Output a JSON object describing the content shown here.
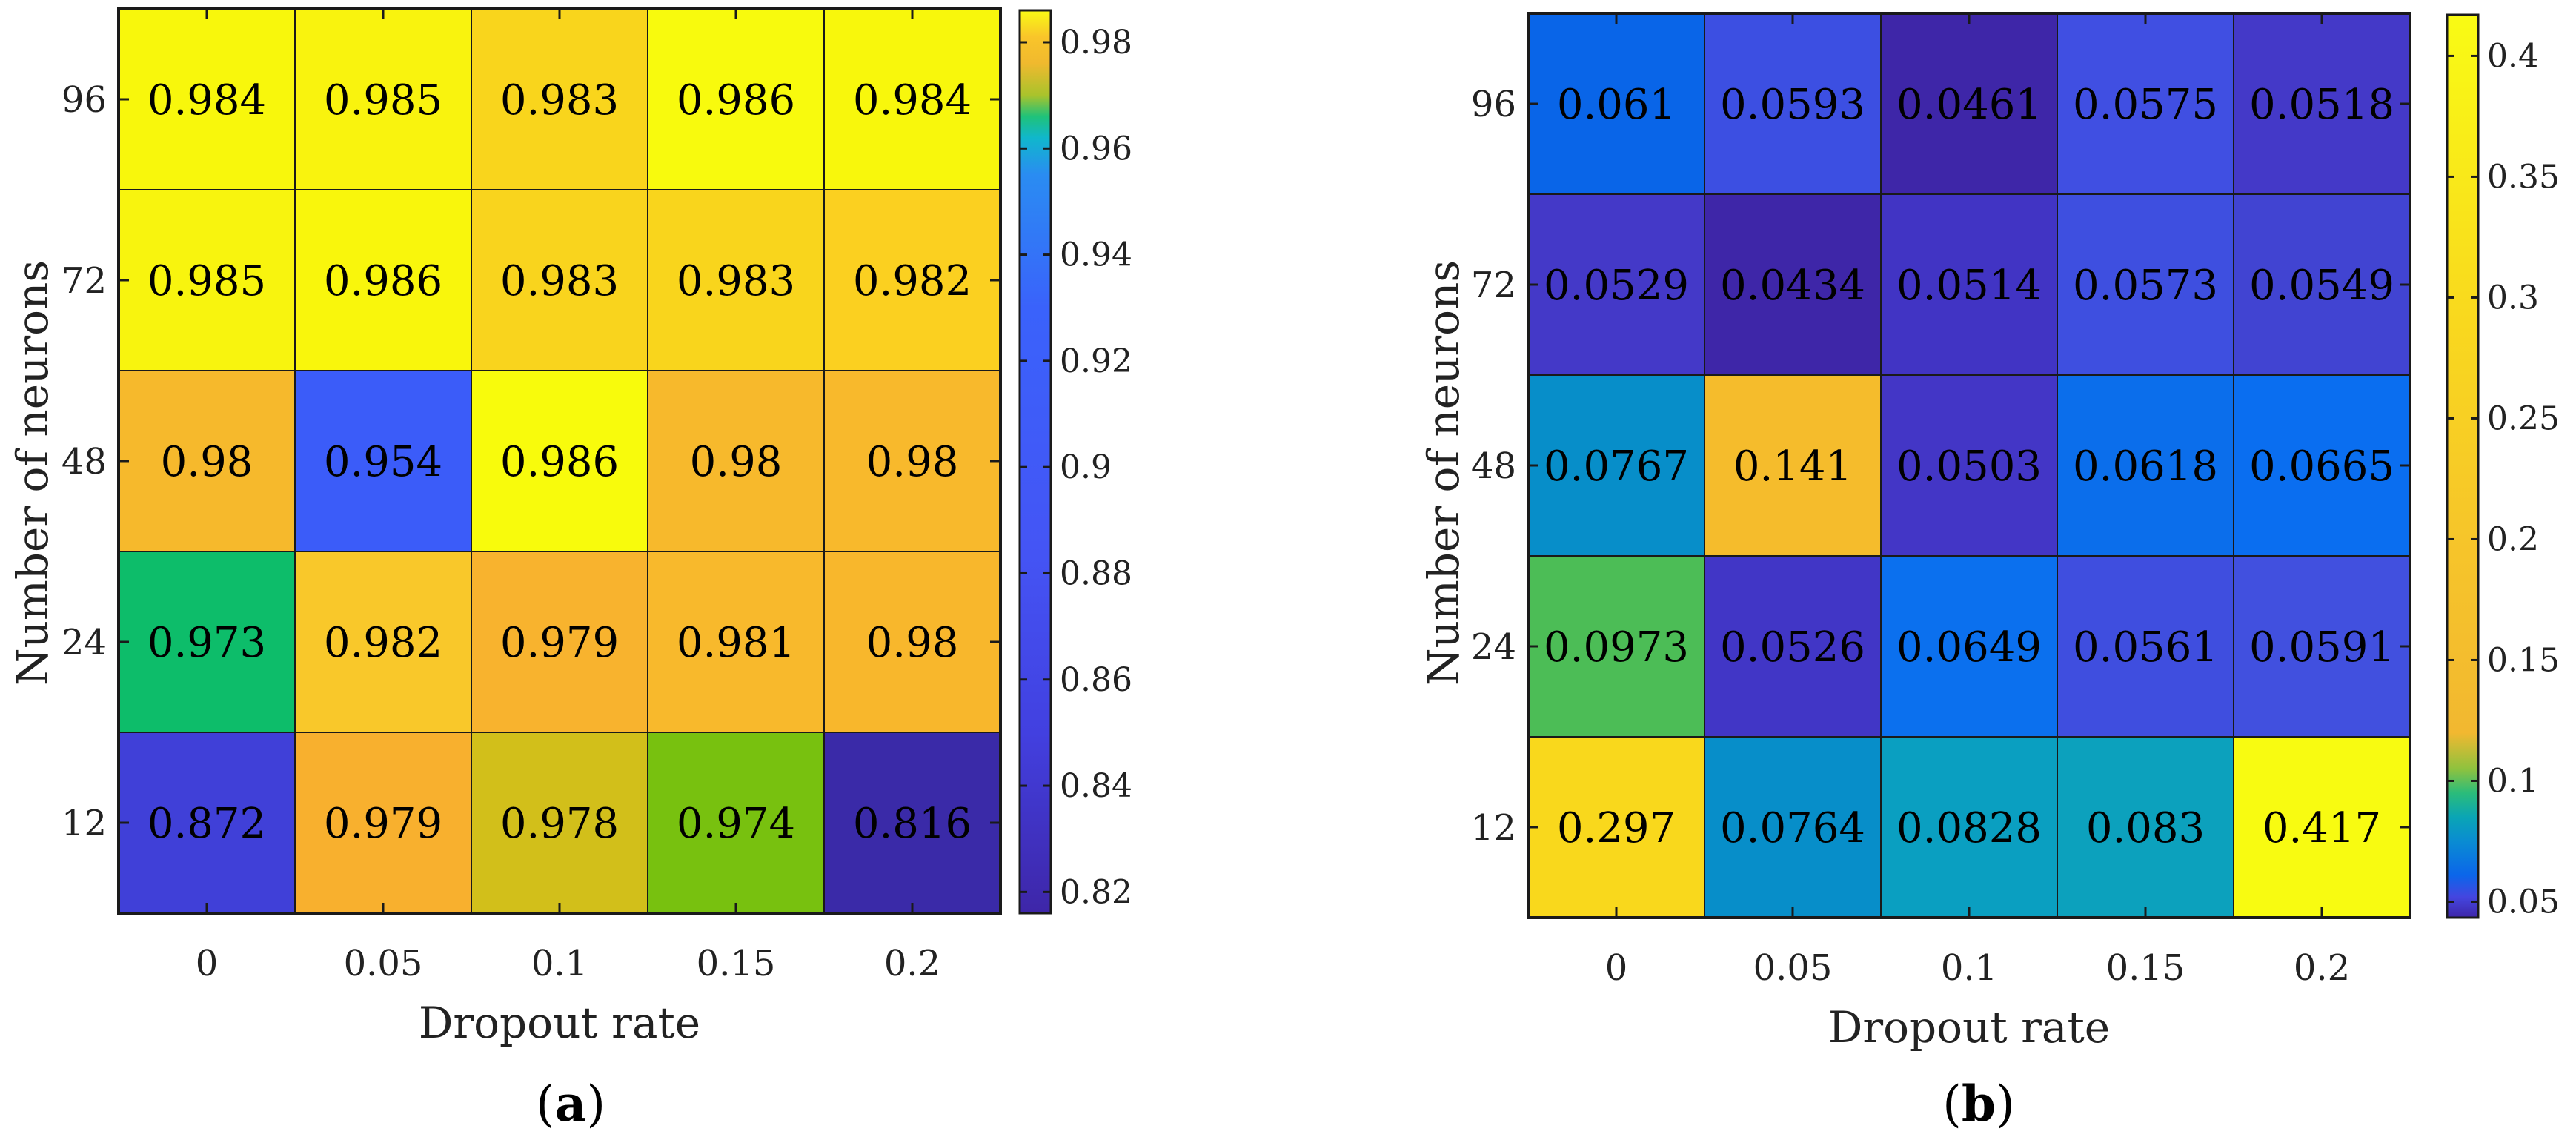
{
  "chart_data": [
    {
      "type": "heatmap",
      "panel_label": "(a)",
      "panel_letter": "a",
      "xlabel": "Dropout rate",
      "ylabel": "Number of neurons",
      "x_categories": [
        "0",
        "0.05",
        "0.1",
        "0.15",
        "0.2"
      ],
      "y_categories": [
        "96",
        "72",
        "48",
        "24",
        "12"
      ],
      "values": [
        [
          0.984,
          0.985,
          0.983,
          0.986,
          0.984
        ],
        [
          0.985,
          0.986,
          0.983,
          0.983,
          0.982
        ],
        [
          0.98,
          0.954,
          0.986,
          0.98,
          0.98
        ],
        [
          0.973,
          0.982,
          0.979,
          0.981,
          0.98
        ],
        [
          0.872,
          0.979,
          0.978,
          0.974,
          0.816
        ]
      ],
      "value_labels": [
        [
          "0.984",
          "0.985",
          "0.983",
          "0.986",
          "0.984"
        ],
        [
          "0.985",
          "0.986",
          "0.983",
          "0.983",
          "0.982"
        ],
        [
          "0.98",
          "0.954",
          "0.986",
          "0.98",
          "0.98"
        ],
        [
          "0.973",
          "0.982",
          "0.979",
          "0.981",
          "0.98"
        ],
        [
          "0.872",
          "0.979",
          "0.978",
          "0.974",
          "0.816"
        ]
      ],
      "cell_colors": [
        [
          "#f8f70c",
          "#f9f30e",
          "#f9d51c",
          "#f8fa0d",
          "#f8f70c"
        ],
        [
          "#f8f40e",
          "#f9f60c",
          "#f9d41d",
          "#f9d51c",
          "#fbd020"
        ],
        [
          "#f6b92c",
          "#3b5cf9",
          "#f8fb0c",
          "#f7b92c",
          "#f8b92c"
        ],
        [
          "#0dbd6a",
          "#f9c82a",
          "#f8b32e",
          "#f8b92c",
          "#f8b72c"
        ],
        [
          "#4040d8",
          "#f8b02e",
          "#d2bf1a",
          "#78c10f",
          "#3a2aa8"
        ]
      ],
      "colorbar": {
        "range": [
          0.816,
          0.986
        ],
        "ticks": [
          "0.82",
          "0.84",
          "0.86",
          "0.88",
          "0.9",
          "0.92",
          "0.94",
          "0.96",
          "0.98"
        ],
        "tick_values": [
          0.82,
          0.84,
          0.86,
          0.88,
          0.9,
          0.92,
          0.94,
          0.96,
          0.98
        ],
        "stops": [
          {
            "v": 0.816,
            "c": "#3e26a8"
          },
          {
            "v": 0.85,
            "c": "#4240e0"
          },
          {
            "v": 0.885,
            "c": "#4455f5"
          },
          {
            "v": 0.93,
            "c": "#3a62fb"
          },
          {
            "v": 0.955,
            "c": "#2a8cf2"
          },
          {
            "v": 0.962,
            "c": "#10b7cc"
          },
          {
            "v": 0.966,
            "c": "#1fc27a"
          },
          {
            "v": 0.97,
            "c": "#a9c32c"
          },
          {
            "v": 0.976,
            "c": "#f0b92e"
          },
          {
            "v": 0.981,
            "c": "#f9c52a"
          },
          {
            "v": 0.986,
            "c": "#f9fb14"
          }
        ]
      }
    },
    {
      "type": "heatmap",
      "panel_label": "(b)",
      "panel_letter": "b",
      "xlabel": "Dropout rate",
      "ylabel": "Number of neurons",
      "x_categories": [
        "0",
        "0.05",
        "0.1",
        "0.15",
        "0.2"
      ],
      "y_categories": [
        "96",
        "72",
        "48",
        "24",
        "12"
      ],
      "values": [
        [
          0.061,
          0.0593,
          0.0461,
          0.0575,
          0.0518
        ],
        [
          0.0529,
          0.0434,
          0.0514,
          0.0573,
          0.0549
        ],
        [
          0.0767,
          0.141,
          0.0503,
          0.0618,
          0.0665
        ],
        [
          0.0973,
          0.0526,
          0.0649,
          0.0561,
          0.0591
        ],
        [
          0.297,
          0.0764,
          0.0828,
          0.083,
          0.417
        ]
      ],
      "value_labels": [
        [
          "0.061",
          "0.0593",
          "0.0461",
          "0.0575",
          "0.0518"
        ],
        [
          "0.0529",
          "0.0434",
          "0.0514",
          "0.0573",
          "0.0549"
        ],
        [
          "0.0767",
          "0.141",
          "0.0503",
          "0.0618",
          "0.0665"
        ],
        [
          "0.0973",
          "0.0526",
          "0.0649",
          "0.0561",
          "0.0591"
        ],
        [
          "0.297",
          "0.0764",
          "0.0828",
          "0.083",
          "0.417"
        ]
      ],
      "cell_colors": [
        [
          "#0965e8",
          "#3c4fe2",
          "#3e26a8",
          "#404fe2",
          "#4439c8"
        ],
        [
          "#4439c8",
          "#3e26a8",
          "#4134c4",
          "#3e4fe0",
          "#4144d2"
        ],
        [
          "#078ec9",
          "#f5bc2c",
          "#4336c6",
          "#0b6eeb",
          "#0a6ef0"
        ],
        [
          "#4cbd56",
          "#4136c6",
          "#0b70ee",
          "#3f4edf",
          "#4150df"
        ],
        [
          "#f9d81c",
          "#078ec9",
          "#0a9fc1",
          "#0ca1bd",
          "#f8fb11"
        ]
      ],
      "colorbar": {
        "range": [
          0.0434,
          0.417
        ],
        "ticks": [
          "0.05",
          "0.1",
          "0.15",
          "0.2",
          "0.25",
          "0.3",
          "0.35",
          "0.4"
        ],
        "tick_values": [
          0.05,
          0.1,
          0.15,
          0.2,
          0.25,
          0.3,
          0.35,
          0.4
        ],
        "stops": [
          {
            "v": 0.0434,
            "c": "#3e26a8"
          },
          {
            "v": 0.052,
            "c": "#4446e0"
          },
          {
            "v": 0.061,
            "c": "#0b66ea"
          },
          {
            "v": 0.075,
            "c": "#0a8cd2"
          },
          {
            "v": 0.085,
            "c": "#0aa5b5"
          },
          {
            "v": 0.095,
            "c": "#2bbc7a"
          },
          {
            "v": 0.105,
            "c": "#8fc23e"
          },
          {
            "v": 0.12,
            "c": "#f2b830"
          },
          {
            "v": 0.2,
            "c": "#f6c52a"
          },
          {
            "v": 0.29,
            "c": "#f9d81e"
          },
          {
            "v": 0.417,
            "c": "#f9fb14"
          }
        ]
      }
    }
  ]
}
